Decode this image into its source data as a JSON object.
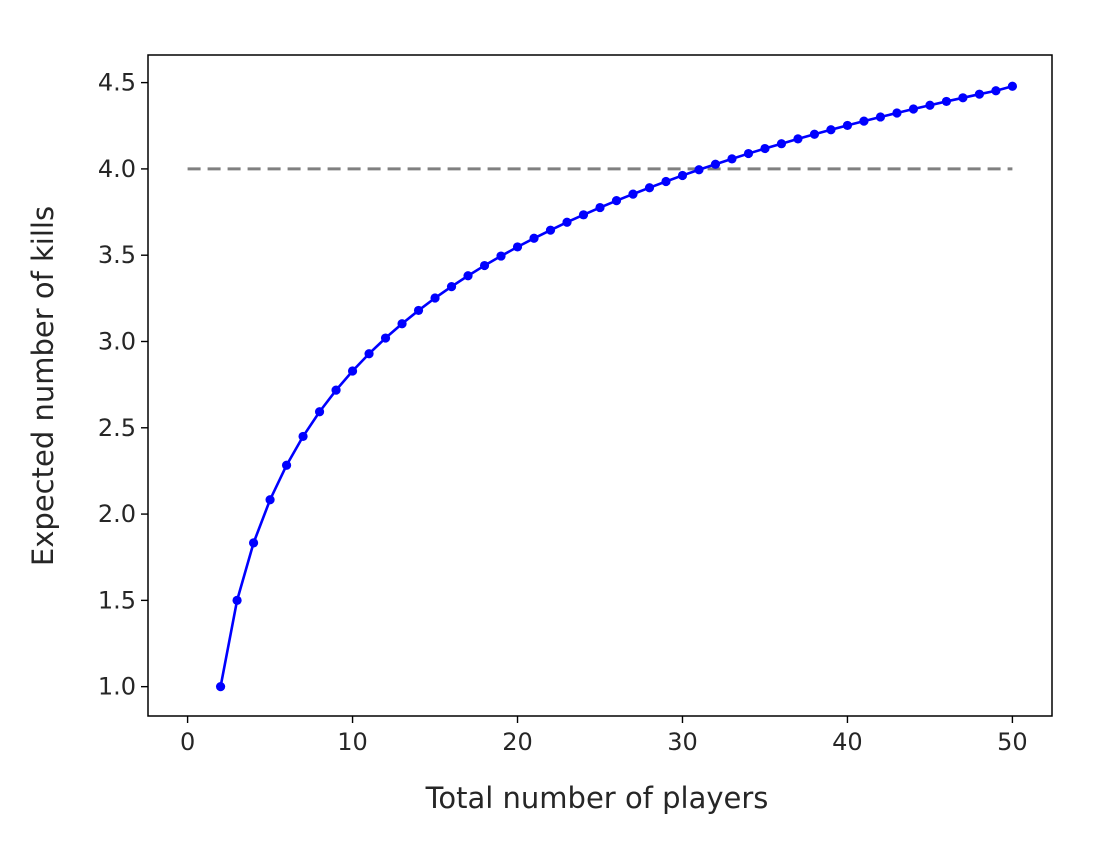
{
  "chart_data": {
    "type": "line",
    "title": "",
    "xlabel": "Total number of players",
    "ylabel": "Expected number of kills",
    "xlim": [
      -2.4,
      52.4
    ],
    "ylim": [
      0.83,
      4.66
    ],
    "xticks": [
      0,
      10,
      20,
      30,
      40,
      50
    ],
    "yticks": [
      1.0,
      1.5,
      2.0,
      2.5,
      3.0,
      3.5,
      4.0,
      4.5
    ],
    "xtick_labels": [
      "0",
      "10",
      "20",
      "30",
      "40",
      "50"
    ],
    "ytick_labels": [
      "1.0",
      "1.5",
      "2.0",
      "2.5",
      "3.0",
      "3.5",
      "4.0",
      "4.5"
    ],
    "grid": false,
    "legend": "none",
    "series": [
      {
        "style": "solid line with dot markers",
        "color": "#0000ff",
        "x": [
          2,
          3,
          4,
          5,
          6,
          7,
          8,
          9,
          10,
          11,
          12,
          13,
          14,
          15,
          16,
          17,
          18,
          19,
          20,
          21,
          22,
          23,
          24,
          25,
          26,
          27,
          28,
          29,
          30,
          31,
          32,
          33,
          34,
          35,
          36,
          37,
          38,
          39,
          40,
          41,
          42,
          43,
          44,
          45,
          46,
          47,
          48,
          49,
          50
        ],
        "y": [
          1.0,
          1.5,
          1.833,
          2.083,
          2.283,
          2.45,
          2.593,
          2.718,
          2.829,
          2.929,
          3.02,
          3.103,
          3.18,
          3.252,
          3.318,
          3.381,
          3.44,
          3.495,
          3.548,
          3.598,
          3.645,
          3.691,
          3.734,
          3.776,
          3.816,
          3.854,
          3.891,
          3.927,
          3.962,
          3.995,
          4.027,
          4.058,
          4.089,
          4.118,
          4.146,
          4.174,
          4.201,
          4.227,
          4.252,
          4.277,
          4.301,
          4.324,
          4.347,
          4.369,
          4.391,
          4.412,
          4.433,
          4.453,
          4.479
        ]
      },
      {
        "style": "dashed line",
        "color": "#808080",
        "x": [
          0,
          50
        ],
        "y": [
          4.0,
          4.0
        ]
      }
    ]
  }
}
